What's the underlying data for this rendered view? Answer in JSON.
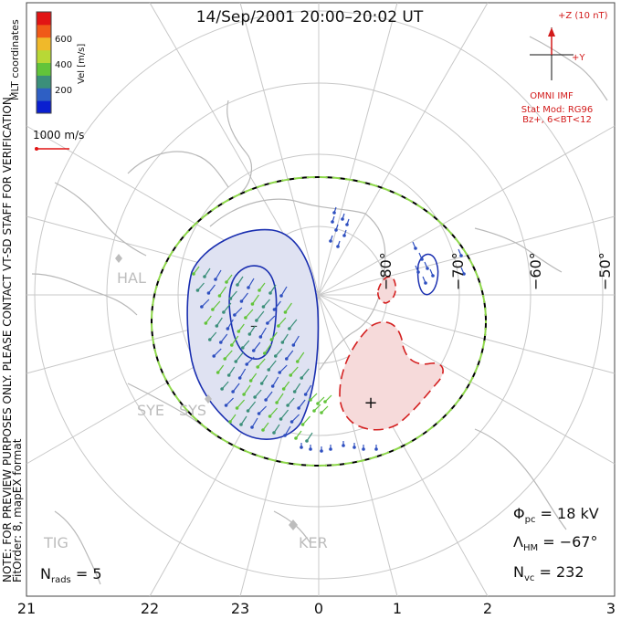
{
  "title": "14/Sep/2001 20:00–20:02 UT",
  "color_scale": {
    "label": "Vel [m/s]",
    "ticks": [
      "600",
      "400",
      "200"
    ],
    "colors": [
      "#0a1fd0",
      "#2e5fc4",
      "#3b8f7a",
      "#62c43a",
      "#b8d836",
      "#f0b92a",
      "#f05a18",
      "#e11414"
    ]
  },
  "coordinate_label": "MLT coordinates",
  "reference_vector": "1000 m/s",
  "notes": {
    "line1": "NOTE: FOR PREVIEW PURPOSES ONLY. PLEASE CONTACT VT-SD STAFF FOR VERIFICATION.",
    "line2": "FitOrder: 8, mapEX format"
  },
  "imf": {
    "z_label": "+Z (10 nT)",
    "y_label": "+Y",
    "source": "OMNI IMF",
    "model_line1": "Stat Mod: RG96",
    "model_line2": "Bz+, 6<BT<12"
  },
  "latitude_labels": [
    "−80°",
    "−70°",
    "−60°",
    "−50°"
  ],
  "stations": [
    "HAL",
    "SYE",
    "SYS",
    "KER",
    "TIG"
  ],
  "stats": {
    "phi_pc_value": "18 kV",
    "lambda_hm_value": "−67°",
    "n_vc_value": "232",
    "n_rads_value": "5"
  },
  "mlt_labels": [
    "21",
    "22",
    "23",
    "0",
    "1",
    "2",
    "3"
  ],
  "cells": {
    "negative_marker": "–",
    "positive_marker": "+"
  },
  "colors": {
    "negative_contour": "#1a2fb0",
    "negative_fill": "#dfe2f2",
    "positive_contour": "#d42020",
    "positive_fill": "#f6dada",
    "heppner_outer": "#000000",
    "heppner_inner": "#8ed84a",
    "coastline": "#b8b8b8",
    "grid": "#c8c8c8"
  }
}
